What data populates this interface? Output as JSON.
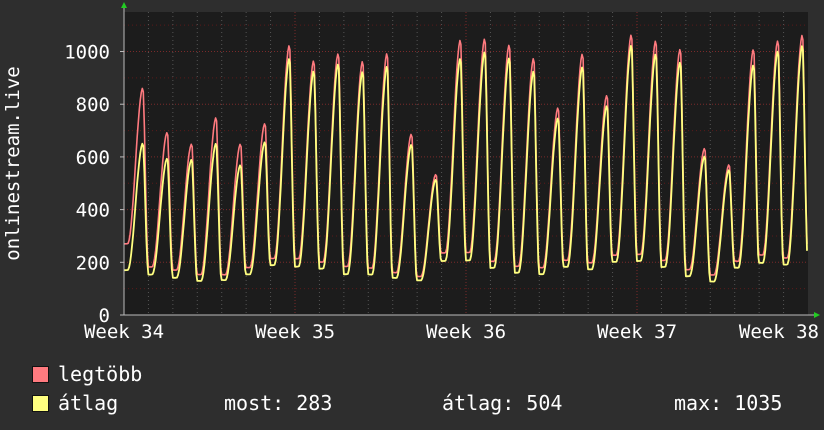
{
  "chart_data": {
    "type": "line",
    "ylabel": "onlinestream.live",
    "ylim": [
      0,
      1150
    ],
    "yticks": [
      0,
      200,
      400,
      600,
      800,
      1000
    ],
    "xlim_days": [
      0,
      28
    ],
    "x_ticks": [
      {
        "label": "Week 34",
        "day": 0
      },
      {
        "label": "Week 35",
        "day": 7
      },
      {
        "label": "Week 36",
        "day": 14
      },
      {
        "label": "Week 37",
        "day": 21
      },
      {
        "label": "Week 38",
        "day": 28
      }
    ],
    "grid": true,
    "legend_placement": "bottom-left",
    "series": [
      {
        "name": "legtöbb",
        "color": "#ff7a7f",
        "daily_peaks": [
          860,
          700,
          660,
          760,
          650,
          720,
          1010,
          960,
          1000,
          980,
          1010,
          690,
          530,
          1030,
          1040,
          1030,
          990,
          800,
          1000,
          830,
          1050,
          1030,
          1010,
          640,
          580,
          1020,
          1040,
          1050
        ],
        "daily_lows": [
          270,
          190,
          180,
          160,
          150,
          170,
          200,
          210,
          210,
          200,
          190,
          160,
          140,
          220,
          230,
          210,
          200,
          190,
          210,
          190,
          210,
          220,
          210,
          180,
          160,
          210,
          220,
          200
        ]
      },
      {
        "name": "átlag",
        "color": "#ffff80",
        "daily_peaks": [
          650,
          600,
          600,
          660,
          570,
          650,
          960,
          920,
          960,
          940,
          960,
          650,
          510,
          960,
          990,
          980,
          940,
          760,
          950,
          790,
          1010,
          980,
          960,
          610,
          560,
          960,
          1000,
          1010
        ],
        "daily_lows": [
          170,
          160,
          150,
          135,
          130,
          145,
          175,
          180,
          185,
          170,
          165,
          140,
          125,
          190,
          200,
          185,
          175,
          165,
          185,
          165,
          185,
          195,
          185,
          155,
          135,
          185,
          190,
          175
        ]
      }
    ]
  },
  "legend": {
    "items": [
      {
        "label": "legtöbb",
        "color": "#ff7a7f"
      },
      {
        "label": "átlag",
        "color": "#ffff80"
      }
    ],
    "stats": {
      "now": "most: 283",
      "avg": "átlag: 504",
      "max": "max: 1035"
    }
  }
}
